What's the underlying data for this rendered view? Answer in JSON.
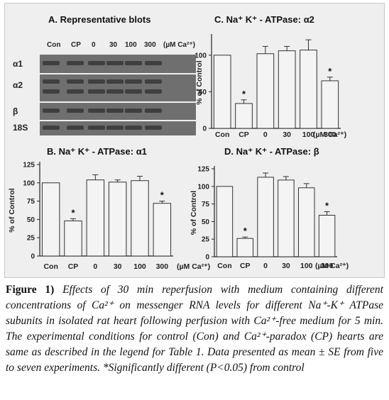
{
  "figure": {
    "blots": {
      "title": "A.  Representative blots",
      "lanes": [
        "Con",
        "CP",
        "0",
        "30",
        "100",
        "300"
      ],
      "unit": "(µM Ca²⁺)",
      "rows": [
        "α1",
        "α2",
        "β",
        "18S"
      ]
    }
  },
  "chart_data": [
    {
      "id": "C",
      "type": "bar",
      "title": "C.  Na⁺ K⁺ - ATPase:  α2",
      "ylabel": "% of Control",
      "xlabel": "",
      "categories": [
        "Con",
        "CP",
        "0",
        "30",
        "100",
        "300"
      ],
      "unit_label": "(µM Ca²⁺)",
      "values": [
        100,
        34,
        102,
        106,
        107,
        65
      ],
      "errors": [
        0,
        5,
        10,
        6,
        14,
        5
      ],
      "significant": [
        false,
        true,
        false,
        false,
        false,
        true
      ],
      "ylim": [
        0,
        125
      ],
      "yticks": [
        "0",
        "50",
        "100"
      ],
      "ytick_values": [
        0,
        50,
        100
      ]
    },
    {
      "id": "B",
      "type": "bar",
      "title": "B.  Na⁺ K⁺ - ATPase:  α1",
      "ylabel": "% of Control",
      "xlabel": "",
      "categories": [
        "Con",
        "CP",
        "0",
        "30",
        "100",
        "300"
      ],
      "unit_label": "(µM Ca²⁺)",
      "values": [
        100,
        48,
        104,
        101,
        103,
        72
      ],
      "errors": [
        0,
        3,
        7,
        3,
        6,
        3
      ],
      "significant": [
        false,
        true,
        false,
        false,
        false,
        true
      ],
      "ylim": [
        0,
        125
      ],
      "yticks": [
        "0",
        "25",
        "50",
        "75",
        "100",
        "125"
      ],
      "ytick_values": [
        0,
        25,
        50,
        75,
        100,
        125
      ]
    },
    {
      "id": "D",
      "type": "bar",
      "title": "D.  Na⁺ K⁺ - ATPase:  β",
      "ylabel": "% of Control",
      "xlabel": "",
      "categories": [
        "Con",
        "CP",
        "0",
        "30",
        "100",
        "300"
      ],
      "unit_label": "(µM Ca²⁺)",
      "values": [
        100,
        26,
        113,
        109,
        98,
        59
      ],
      "errors": [
        0,
        2,
        6,
        5,
        6,
        5
      ],
      "significant": [
        false,
        true,
        false,
        false,
        false,
        true
      ],
      "ylim": [
        0,
        125
      ],
      "yticks": [
        "0",
        "25",
        "50",
        "75",
        "100",
        "125"
      ],
      "ytick_values": [
        0,
        25,
        50,
        75,
        100,
        125
      ]
    }
  ],
  "caption": {
    "lead": "Figure 1)",
    "text": "Effects of 30 min reperfusion with medium containing different concentrations of Ca²⁺ on messenger RNA levels for different Na⁺-K⁺ ATPase subunits in isolated rat heart following perfusion with Ca²⁺-free medium for 5 min. The experimental conditions for control (Con) and Ca²⁺-paradox (CP) hearts are same as described in the legend for Table 1. Data presented as mean ± SE from five to seven experiments. *Significantly different (P<0.05) from control"
  },
  "colors": {
    "bar_fill": "#f4f4f4",
    "bar_stroke": "#333333",
    "panel_bg": "#efefef"
  }
}
